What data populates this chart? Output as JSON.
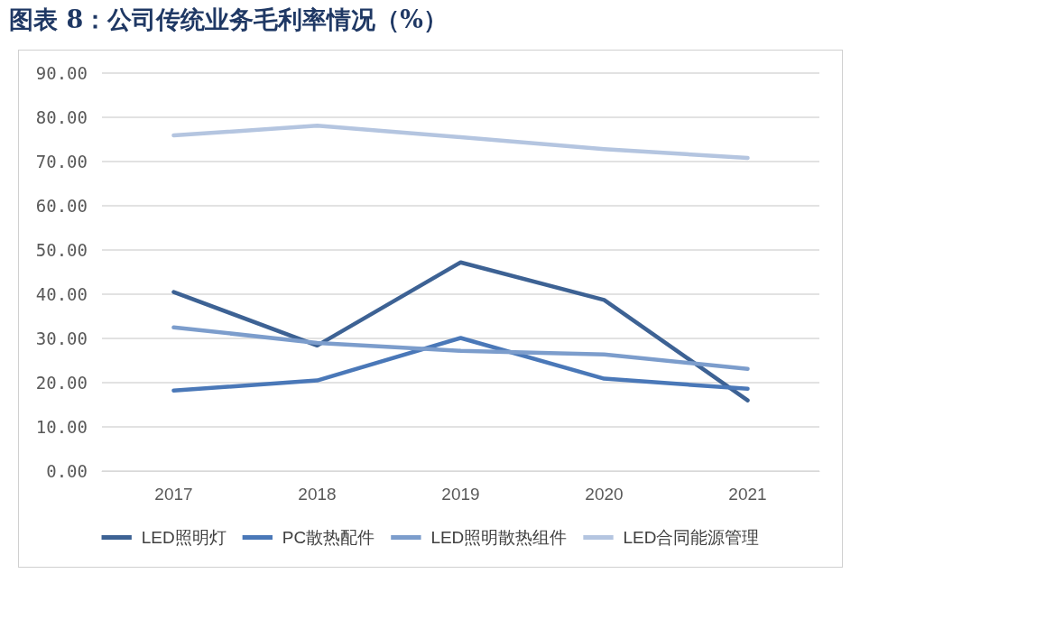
{
  "chart_data": {
    "type": "line",
    "title": "图表 8：公司传统业务毛利率情况（%）",
    "categories": [
      "2017",
      "2018",
      "2019",
      "2020",
      "2021"
    ],
    "series": [
      {
        "name": "LED照明灯",
        "color": "#3d6294",
        "values": [
          40.5,
          28.4,
          47.2,
          38.7,
          16.0
        ]
      },
      {
        "name": "PC散热配件",
        "color": "#4a78b8",
        "values": [
          18.2,
          20.5,
          30.1,
          20.9,
          18.6
        ]
      },
      {
        "name": "LED照明散热组件",
        "color": "#7c9dcc",
        "values": [
          32.5,
          29.0,
          27.2,
          26.4,
          23.1
        ]
      },
      {
        "name": "LED合同能源管理",
        "color": "#b4c5e0",
        "values": [
          75.9,
          78.1,
          75.5,
          72.8,
          70.8
        ]
      }
    ],
    "ylim": [
      0,
      90
    ],
    "yticks": [
      {
        "value": 0,
        "label": "0.00"
      },
      {
        "value": 10,
        "label": "10.00"
      },
      {
        "value": 20,
        "label": "20.00"
      },
      {
        "value": 30,
        "label": "30.00"
      },
      {
        "value": 40,
        "label": "40.00"
      },
      {
        "value": 50,
        "label": "50.00"
      },
      {
        "value": 60,
        "label": "60.00"
      },
      {
        "value": 70,
        "label": "70.00"
      },
      {
        "value": 80,
        "label": "80.00"
      },
      {
        "value": 90,
        "label": "90.00"
      }
    ],
    "grid": "y",
    "legend": "bottom",
    "marker": "none",
    "line_style": "solid"
  }
}
